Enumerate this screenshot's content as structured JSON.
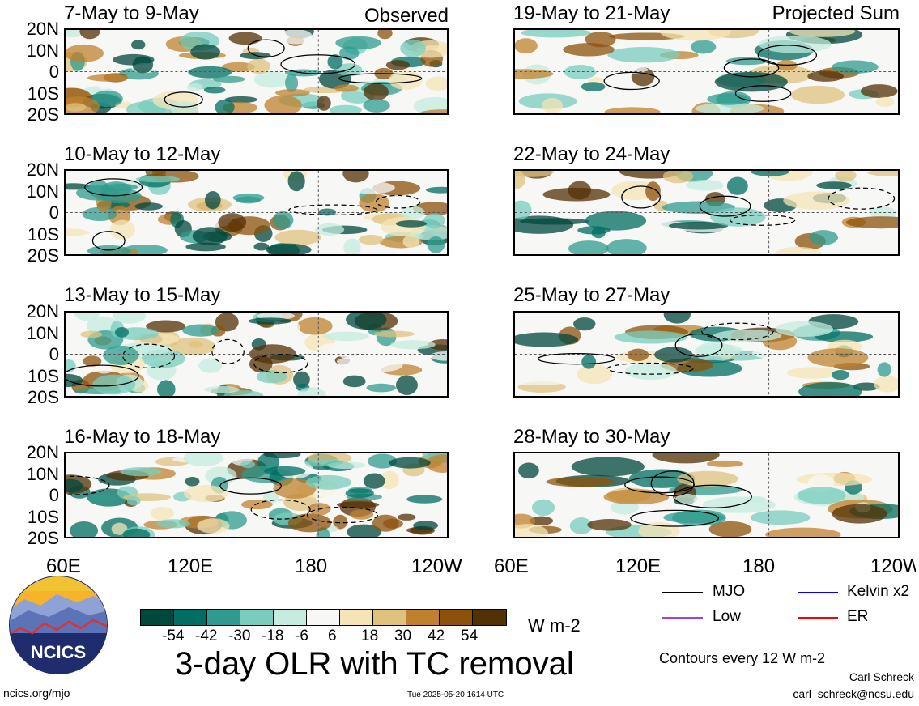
{
  "columns": {
    "left_title": "Observed",
    "right_title": "Projected Sum"
  },
  "chart_data": {
    "type": "heatmap",
    "title": "3-day OLR with TC removal",
    "units": "W m-2",
    "contour_note": "Contours every 12 W m-2",
    "x_ticks": [
      "60E",
      "120E",
      "180",
      "120W"
    ],
    "y_ticks": [
      "20N",
      "10N",
      "0",
      "10S",
      "20S"
    ],
    "colorbar": {
      "ticks": [
        "-54",
        "-42",
        "-30",
        "-18",
        "-6",
        "6",
        "18",
        "30",
        "42",
        "54"
      ],
      "colors": [
        "#00473c",
        "#006e62",
        "#2f9b8e",
        "#78cdbe",
        "#c4ecdf",
        "#f7f7f5",
        "#f4e4b6",
        "#dfc27d",
        "#bf812d",
        "#8c510a",
        "#543005"
      ]
    },
    "panels": [
      {
        "title": "7-May to 9-May",
        "column": "Observed"
      },
      {
        "title": "10-May to 12-May",
        "column": "Observed"
      },
      {
        "title": "13-May to 15-May",
        "column": "Observed"
      },
      {
        "title": "16-May to 18-May",
        "column": "Observed"
      },
      {
        "title": "19-May to 21-May",
        "column": "Projected Sum"
      },
      {
        "title": "22-May to 24-May",
        "column": "Projected Sum"
      },
      {
        "title": "25-May to 27-May",
        "column": "Projected Sum"
      },
      {
        "title": "28-May to 30-May",
        "column": "Projected Sum"
      }
    ],
    "legend": [
      {
        "label": "MJO",
        "color": "#000000"
      },
      {
        "label": "Kelvin x2",
        "color": "#0000ff"
      },
      {
        "label": "Low",
        "color": "#a040e0"
      },
      {
        "label": "ER",
        "color": "#ff0000"
      }
    ]
  },
  "footer": {
    "site": "ncics.org/mjo",
    "timestamp": "Tue 2025-05-20 1614 UTC",
    "author": "Carl Schreck",
    "email": "carl_schreck@ncsu.edu",
    "logo_text": "NCICS"
  }
}
